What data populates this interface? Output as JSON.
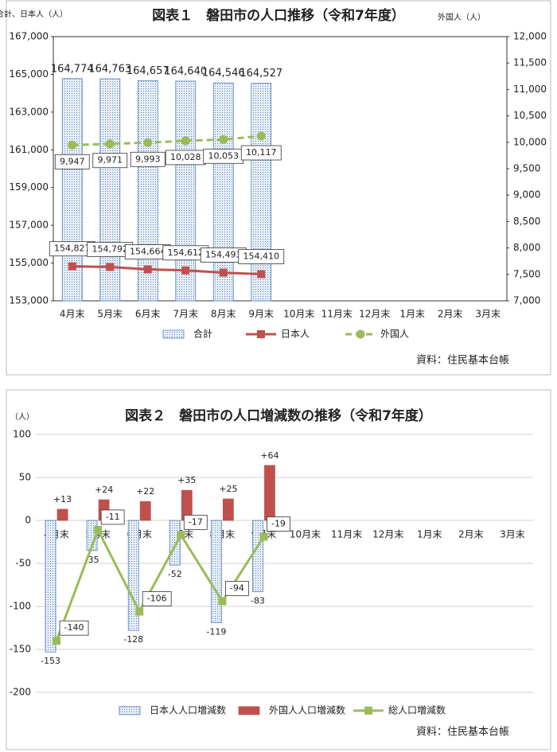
{
  "chart_data": [
    {
      "type": "bar",
      "title": "図表１　磐田市の人口推移（令和7年度）",
      "ylabel": "合計、日本人（人）",
      "y2label": "外国人（人）",
      "categories": [
        "4月末",
        "5月末",
        "6月末",
        "7月末",
        "8月末",
        "9月末",
        "10月末",
        "11月末",
        "12月末",
        "1月末",
        "2月末",
        "3月末"
      ],
      "series": [
        {
          "name": "合計",
          "type": "bar",
          "color": "#4f81bd",
          "values": [
            164774,
            164763,
            164657,
            164640,
            164546,
            164527,
            null,
            null,
            null,
            null,
            null,
            null
          ],
          "value_labels": [
            "164,774",
            "164,763",
            "164,657",
            "164,640",
            "164,546",
            "164,527",
            null,
            null,
            null,
            null,
            null,
            null
          ]
        },
        {
          "name": "日本人",
          "type": "line",
          "color": "#c0504d",
          "marker": "square",
          "values": [
            154827,
            154792,
            154664,
            154612,
            154493,
            154410,
            null,
            null,
            null,
            null,
            null,
            null
          ],
          "value_labels": [
            "154,827",
            "154,792",
            "154,664",
            "154,612",
            "154,493",
            "154,410",
            null,
            null,
            null,
            null,
            null,
            null
          ]
        },
        {
          "name": "外国人",
          "type": "line",
          "color": "#9bbb59",
          "marker": "circle",
          "dashed": true,
          "axis": "y2",
          "values": [
            9947,
            9971,
            9993,
            10028,
            10053,
            10117,
            null,
            null,
            null,
            null,
            null,
            null
          ],
          "value_labels": [
            "9,947",
            "9,971",
            "9,993",
            "10,028",
            "10,053",
            "10,117",
            null,
            null,
            null,
            null,
            null,
            null
          ]
        }
      ],
      "ylim": [
        153000,
        167000
      ],
      "yticks": [
        {
          "value": 153000,
          "label": "153,000"
        },
        {
          "value": 155000,
          "label": "155,000"
        },
        {
          "value": 157000,
          "label": "157,000"
        },
        {
          "value": 159000,
          "label": "159,000"
        },
        {
          "value": 161000,
          "label": "161,000"
        },
        {
          "value": 163000,
          "label": "163,000"
        },
        {
          "value": 165000,
          "label": "165,000"
        },
        {
          "value": 167000,
          "label": "167,000"
        }
      ],
      "y2lim": [
        7000,
        12000
      ],
      "y2ticks": [
        {
          "value": 7000,
          "label": "7,000"
        },
        {
          "value": 7500,
          "label": "7,500"
        },
        {
          "value": 8000,
          "label": "8,000"
        },
        {
          "value": 8500,
          "label": "8,500"
        },
        {
          "value": 9000,
          "label": "9,000"
        },
        {
          "value": 9500,
          "label": "9,500"
        },
        {
          "value": 10000,
          "label": "10,000"
        },
        {
          "value": 10500,
          "label": "10,500"
        },
        {
          "value": 11000,
          "label": "11,000"
        },
        {
          "value": 11500,
          "label": "11,500"
        },
        {
          "value": 12000,
          "label": "12,000"
        }
      ],
      "grid": false,
      "legend": "bottom",
      "source": "資料：住民基本台帳"
    },
    {
      "type": "bar",
      "title": "図表２　磐田市の人口増減数の推移（令和7年度）",
      "ylabel": "（人）",
      "categories": [
        "4月末",
        "5月末",
        "6月末",
        "7月末",
        "8月末",
        "9月末",
        "10月末",
        "11月末",
        "12月末",
        "1月末",
        "2月末",
        "3月末"
      ],
      "series": [
        {
          "name": "日本人人口増減数",
          "type": "bar",
          "color": "#4f81bd",
          "values": [
            -153,
            -35,
            -128,
            -52,
            -119,
            -83,
            null,
            null,
            null,
            null,
            null,
            null
          ]
        },
        {
          "name": "外国人人口増減数",
          "type": "bar",
          "color": "#c0504d",
          "solid": true,
          "values": [
            13,
            24,
            22,
            35,
            25,
            64,
            null,
            null,
            null,
            null,
            null,
            null
          ],
          "value_labels": [
            "+13",
            "+24",
            "+22",
            "+35",
            "+25",
            "+64",
            null,
            null,
            null,
            null,
            null,
            null
          ]
        },
        {
          "name": "総人口増減数",
          "type": "line",
          "color": "#9bbb59",
          "marker": "square",
          "values": [
            -140,
            -11,
            -106,
            -17,
            -94,
            -19,
            null,
            null,
            null,
            null,
            null,
            null
          ]
        }
      ],
      "ylim": [
        -200,
        100
      ],
      "yticks": [
        -200,
        -150,
        -100,
        -50,
        0,
        50,
        100
      ],
      "grid": true,
      "legend": "bottom",
      "source": "資料：住民基本台帳"
    }
  ]
}
